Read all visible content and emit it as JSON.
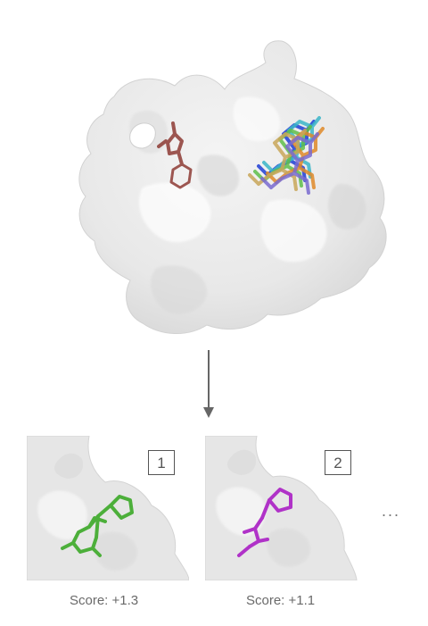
{
  "diagram": {
    "poses": [
      {
        "rank": "1",
        "score_label": "Score: +1.3",
        "ligand_color": "#4caf3a"
      },
      {
        "rank": "2",
        "score_label": "Score: +1.1",
        "ligand_color": "#b032c8"
      }
    ],
    "more_indicator": "...",
    "docked_ligand_colors": [
      "#1f3fd6",
      "#3bb6c8",
      "#5fbf4a",
      "#e08a2a",
      "#c9a75a",
      "#7a6bd0"
    ],
    "reference_ligand_color": "#8e3b35",
    "surface_color": "#e9e9e9"
  }
}
